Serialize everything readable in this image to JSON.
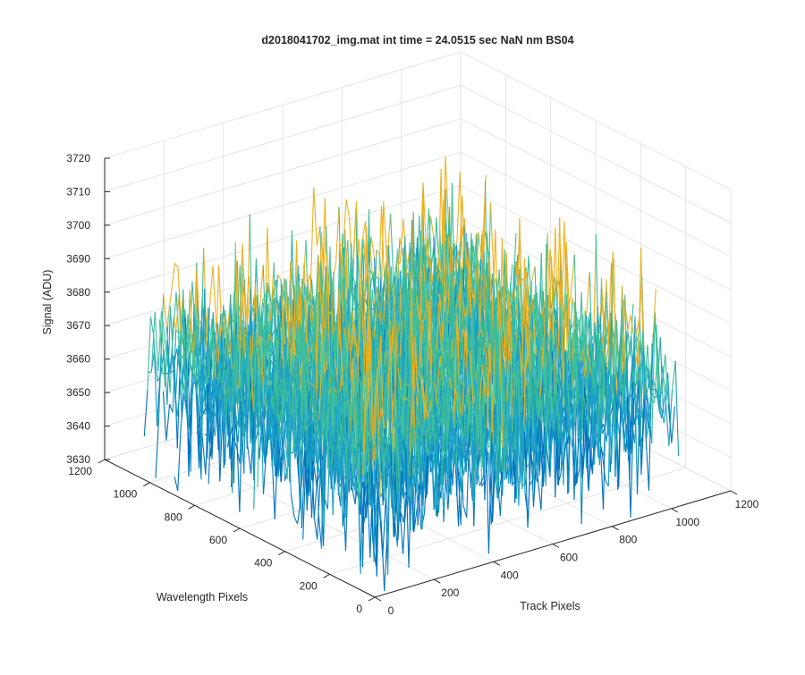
{
  "window": {
    "title": "d2018041702_img.mat int time = 24.0515 sec  NaN nm BS04"
  },
  "chart_data": {
    "type": "surface",
    "title": "d2018041702_img.mat int time = 24.0515 sec  NaN nm BS04",
    "xlabel": "Track Pixels",
    "ylabel": "Wavelength Pixels",
    "zlabel": "Signal (ADU)",
    "xlim": [
      0,
      1200
    ],
    "ylim": [
      0,
      1200
    ],
    "zlim": [
      3630,
      3720
    ],
    "x_ticks": [
      0,
      200,
      400,
      600,
      800,
      1000,
      1200
    ],
    "y_ticks": [
      0,
      200,
      400,
      600,
      800,
      1000,
      1200
    ],
    "z_ticks": [
      3630,
      3640,
      3650,
      3660,
      3670,
      3680,
      3690,
      3700,
      3710,
      3720
    ],
    "data_extent": {
      "x": [
        0,
        1024
      ],
      "y": [
        0,
        1024
      ]
    },
    "signal_mean": 3665,
    "signal_range": [
      3637,
      3695
    ],
    "grid": true,
    "view": "3d-perspective",
    "colors": {
      "low": "#0072BD",
      "mid": "#1AA0C6",
      "midhigh": "#3FBF9B",
      "high": "#EDB120",
      "axis": "#262626",
      "grid": "#dfdfdf",
      "background": "#ffffff"
    }
  }
}
